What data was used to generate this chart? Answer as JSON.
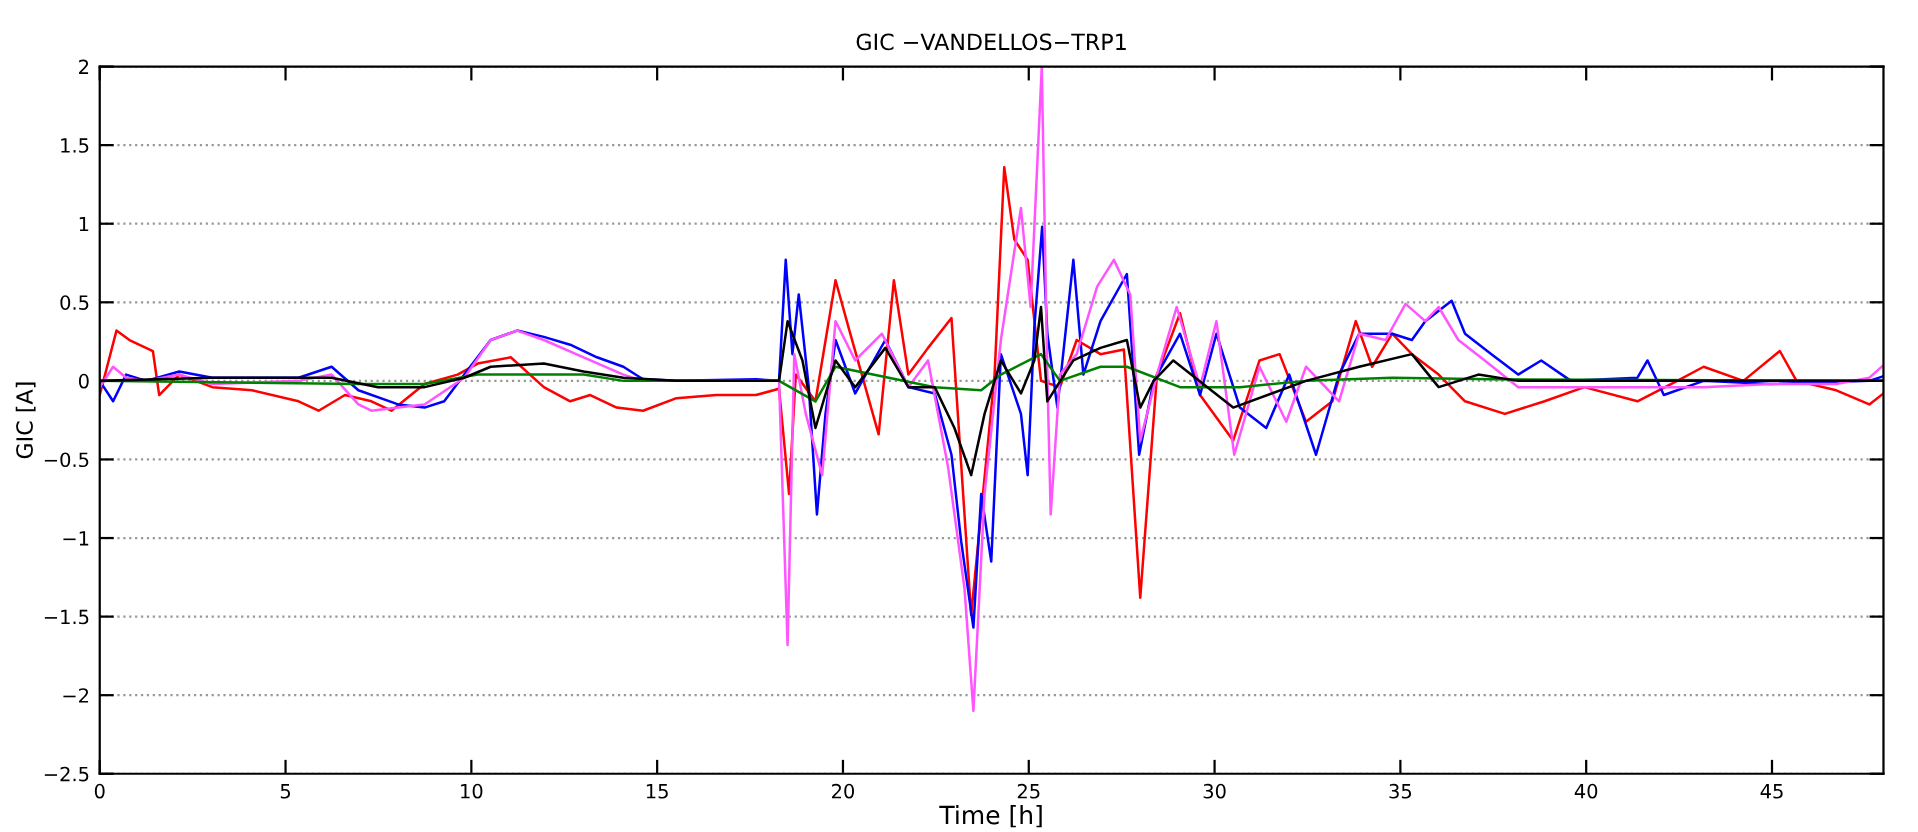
{
  "chart_data": {
    "type": "line",
    "title": "GIC −VANDELLOS−TRP1",
    "xlabel": "Time [h]",
    "ylabel": "GIC [A]",
    "xlim": [
      0,
      48
    ],
    "ylim": [
      -2.5,
      2
    ],
    "xticks": [
      0,
      5,
      10,
      15,
      20,
      25,
      30,
      35,
      40,
      45
    ],
    "yticks": [
      {
        "value": -2.5,
        "label": "−2.5"
      },
      {
        "value": -2,
        "label": "−2"
      },
      {
        "value": -1.5,
        "label": "−1.5"
      },
      {
        "value": -1,
        "label": "−1"
      },
      {
        "value": -0.5,
        "label": "−0.5"
      },
      0,
      0.5,
      1,
      1.5,
      2
    ],
    "grid": "y",
    "line_style": "solid",
    "series": [
      {
        "color": "#ff0000",
        "x": [
          0,
          0.45,
          0.8,
          1.43,
          1.6,
          2.14,
          3.03,
          4.1,
          5.35,
          5.89,
          6.6,
          7.31,
          7.85,
          8.74,
          9.63,
          10.17,
          11.06,
          11.95,
          12.66,
          13.2,
          13.91,
          14.62,
          15.52,
          16.59,
          17.66,
          18.28,
          18.55,
          18.73,
          19.26,
          19.8,
          20.15,
          20.96,
          21.37,
          21.76,
          22.29,
          22.92,
          23.45,
          24.08,
          24.34,
          24.61,
          24.97,
          25.33,
          25.84,
          26.29,
          26.93,
          27.56,
          28.0,
          28.45,
          29.07,
          29.61,
          30.5,
          31.21,
          31.75,
          32.46,
          33.17,
          33.8,
          34.24,
          34.78,
          35.31,
          36.03,
          36.74,
          37.81,
          38.88,
          39.95,
          41.38,
          42.45,
          43.16,
          44.23,
          45.21,
          45.66,
          46.73,
          47.62,
          48
        ],
        "values": [
          -0.09,
          0.32,
          0.26,
          0.19,
          -0.09,
          0.04,
          -0.04,
          -0.06,
          -0.13,
          -0.19,
          -0.09,
          -0.13,
          -0.19,
          -0.02,
          0.04,
          0.11,
          0.15,
          -0.04,
          -0.13,
          -0.09,
          -0.17,
          -0.19,
          -0.11,
          -0.09,
          -0.09,
          -0.05,
          -0.72,
          0.04,
          -0.13,
          0.64,
          0.34,
          -0.34,
          0.64,
          0.04,
          0.21,
          0.4,
          -1.49,
          0.04,
          1.36,
          0.9,
          0.77,
          0.0,
          -0.04,
          0.26,
          0.17,
          0.2,
          -1.38,
          0.04,
          0.43,
          -0.09,
          -0.38,
          0.13,
          0.17,
          -0.26,
          -0.13,
          0.38,
          0.09,
          0.3,
          0.17,
          0.04,
          -0.13,
          -0.21,
          -0.13,
          -0.04,
          -0.13,
          0,
          0.09,
          0,
          0.19,
          0,
          -0.06,
          -0.15,
          -0.08
        ]
      },
      {
        "color": "#0000ff",
        "x": [
          0,
          0.36,
          0.71,
          1.25,
          2.14,
          3.03,
          5.35,
          6.24,
          6.96,
          8.03,
          8.74,
          9.27,
          9.81,
          10.52,
          11.23,
          11.95,
          12.66,
          13.38,
          14.09,
          14.62,
          15.52,
          17.66,
          18.28,
          18.46,
          18.64,
          18.81,
          19.08,
          19.3,
          19.53,
          19.8,
          20.33,
          21.14,
          21.76,
          22.47,
          22.92,
          23.18,
          23.51,
          23.72,
          23.99,
          24.25,
          24.79,
          24.97,
          25.15,
          25.36,
          25.5,
          25.77,
          26.2,
          26.47,
          26.93,
          27.64,
          27.97,
          28.36,
          29.07,
          29.61,
          30.05,
          30.68,
          31.39,
          32.01,
          32.73,
          33.35,
          33.89,
          34.78,
          35.31,
          35.67,
          36.38,
          36.74,
          37.45,
          38.17,
          38.79,
          39.59,
          41.38,
          41.65,
          42.09,
          43.16,
          44.95,
          47.62,
          48
        ],
        "values": [
          0,
          -0.13,
          0.04,
          0,
          0.06,
          0.02,
          0.02,
          0.09,
          -0.06,
          -0.15,
          -0.17,
          -0.13,
          0.04,
          0.26,
          0.32,
          0.28,
          0.23,
          0.15,
          0.09,
          0.01,
          0,
          0.01,
          0,
          0.77,
          0.17,
          0.55,
          -0.04,
          -0.85,
          -0.21,
          0.26,
          -0.08,
          0.26,
          -0.04,
          -0.08,
          -0.47,
          -1.02,
          -1.57,
          -0.72,
          -1.15,
          0.17,
          -0.21,
          -0.6,
          0.34,
          0.98,
          0.3,
          -0.17,
          0.77,
          0.04,
          0.38,
          0.68,
          -0.47,
          0,
          0.3,
          -0.09,
          0.3,
          -0.17,
          -0.3,
          0.04,
          -0.47,
          0.04,
          0.3,
          0.3,
          0.26,
          0.38,
          0.51,
          0.3,
          0.17,
          0.04,
          0.13,
          0,
          0.02,
          0.13,
          -0.09,
          0,
          -0.02,
          0,
          0.03
        ]
      },
      {
        "color": "#ff55ff",
        "x": [
          0,
          0.36,
          0.71,
          1.25,
          2.14,
          3.03,
          5.35,
          6.24,
          6.96,
          7.31,
          8.03,
          8.74,
          9.81,
          10.52,
          11.23,
          11.95,
          13.02,
          14.09,
          14.62,
          17.66,
          18.28,
          18.51,
          18.69,
          19.0,
          19.44,
          19.8,
          20.33,
          21.05,
          21.76,
          22.29,
          22.83,
          23.27,
          23.51,
          23.81,
          24.25,
          24.52,
          24.79,
          25.05,
          25.2,
          25.35,
          25.5,
          25.59,
          25.84,
          26.29,
          26.84,
          27.29,
          27.73,
          28.0,
          28.45,
          28.98,
          29.61,
          30.05,
          30.53,
          31.21,
          31.93,
          32.46,
          33.35,
          33.89,
          34.6,
          35.14,
          35.67,
          36.03,
          36.56,
          37.27,
          38.17,
          39.59,
          41.38,
          43.16,
          44.95,
          46.73,
          47.62,
          48
        ],
        "values": [
          -0.04,
          0.09,
          0.02,
          0.0,
          0.04,
          -0.02,
          0,
          0.04,
          -0.15,
          -0.19,
          -0.17,
          -0.15,
          0.02,
          0.26,
          0.32,
          0.26,
          0.15,
          0.04,
          0,
          0,
          0,
          -1.68,
          0.17,
          -0.21,
          -0.6,
          0.38,
          0.13,
          0.3,
          -0.04,
          0.13,
          -0.55,
          -1.32,
          -2.1,
          -0.72,
          0.26,
          0.68,
          1.1,
          0.47,
          1.23,
          2.0,
          0.04,
          -0.85,
          0.04,
          0.17,
          0.6,
          0.77,
          0.55,
          -0.38,
          0.04,
          0.47,
          -0.04,
          0.38,
          -0.47,
          0.09,
          -0.26,
          0.09,
          -0.13,
          0.3,
          0.26,
          0.49,
          0.38,
          0.47,
          0.26,
          0.13,
          -0.04,
          -0.04,
          -0.04,
          -0.04,
          -0.02,
          -0.02,
          0.02,
          0.1
        ]
      },
      {
        "color": "#008000",
        "x": [
          0,
          6.96,
          8.74,
          10.17,
          13.02,
          14.09,
          18.28,
          19.26,
          19.8,
          22.47,
          23.72,
          24.25,
          25.33,
          25.84,
          26.93,
          27.64,
          29.07,
          30.68,
          32.46,
          34.78,
          37.45,
          48
        ],
        "values": [
          0,
          -0.02,
          -0.02,
          0.04,
          0.04,
          0,
          0,
          -0.13,
          0.09,
          -0.04,
          -0.06,
          0.04,
          0.17,
          0,
          0.09,
          0.09,
          -0.04,
          -0.04,
          0,
          0.02,
          0.01,
          0
        ]
      },
      {
        "color": "#000000",
        "x": [
          0,
          3.03,
          6.24,
          7.49,
          8.74,
          9.81,
          10.52,
          11.95,
          13.02,
          14.09,
          15.52,
          18.28,
          18.51,
          18.91,
          19.26,
          19.8,
          20.33,
          21.14,
          21.76,
          22.47,
          23.0,
          23.45,
          23.81,
          24.25,
          24.79,
          25.15,
          25.33,
          25.5,
          26.2,
          26.93,
          27.64,
          28.0,
          28.36,
          28.89,
          30.5,
          32.46,
          33.89,
          35.31,
          36.03,
          37.1,
          38.17,
          48
        ],
        "values": [
          0,
          0.02,
          0.02,
          -0.04,
          -0.04,
          0.02,
          0.09,
          0.11,
          0.06,
          0.02,
          0,
          0,
          0.38,
          0.13,
          -0.3,
          0.13,
          -0.04,
          0.21,
          -0.04,
          -0.04,
          -0.3,
          -0.6,
          -0.21,
          0.13,
          -0.08,
          0.13,
          0.47,
          -0.13,
          0.13,
          0.21,
          0.26,
          -0.17,
          0,
          0.13,
          -0.17,
          0,
          0.09,
          0.17,
          -0.04,
          0.04,
          0,
          0
        ]
      }
    ]
  }
}
